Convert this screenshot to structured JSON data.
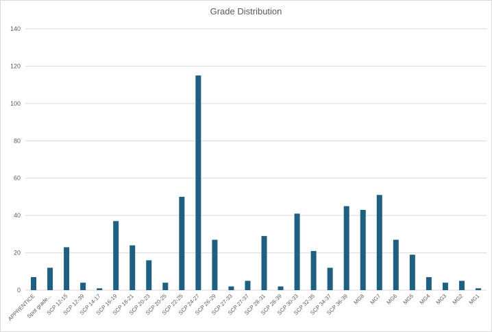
{
  "chart_data": {
    "type": "bar",
    "title": "Grade Distribution",
    "xlabel": "",
    "ylabel": "",
    "ylim": [
      0,
      140
    ],
    "yticks": [
      0,
      20,
      40,
      60,
      80,
      100,
      120,
      140
    ],
    "grid": true,
    "legend": "none",
    "bar_color": "#1f5f7f",
    "categories": [
      "APPRENTICE",
      "Spot grade...",
      "SCP 12-15",
      "SCP 12-39",
      "SCP 14-17",
      "SCP 16-19",
      "SCP 18-21",
      "SCP 20-23",
      "SCP 20-25",
      "SCP 22-25",
      "SCP 24-27",
      "SCP 26-29",
      "SCP 27-33",
      "SCP 27-37",
      "SCP 28-31",
      "SCP 28-39",
      "SCP 30-33",
      "SCP 32-35",
      "SCP 34-37",
      "SCP 36-39",
      "MG8",
      "MG7",
      "MG6",
      "MG5",
      "MG4",
      "MG3",
      "MG2",
      "MG1"
    ],
    "values": [
      7,
      12,
      23,
      4,
      1,
      37,
      24,
      16,
      4,
      50,
      115,
      27,
      2,
      5,
      29,
      2,
      41,
      21,
      12,
      45,
      43,
      51,
      27,
      19,
      7,
      4,
      5,
      1
    ]
  }
}
